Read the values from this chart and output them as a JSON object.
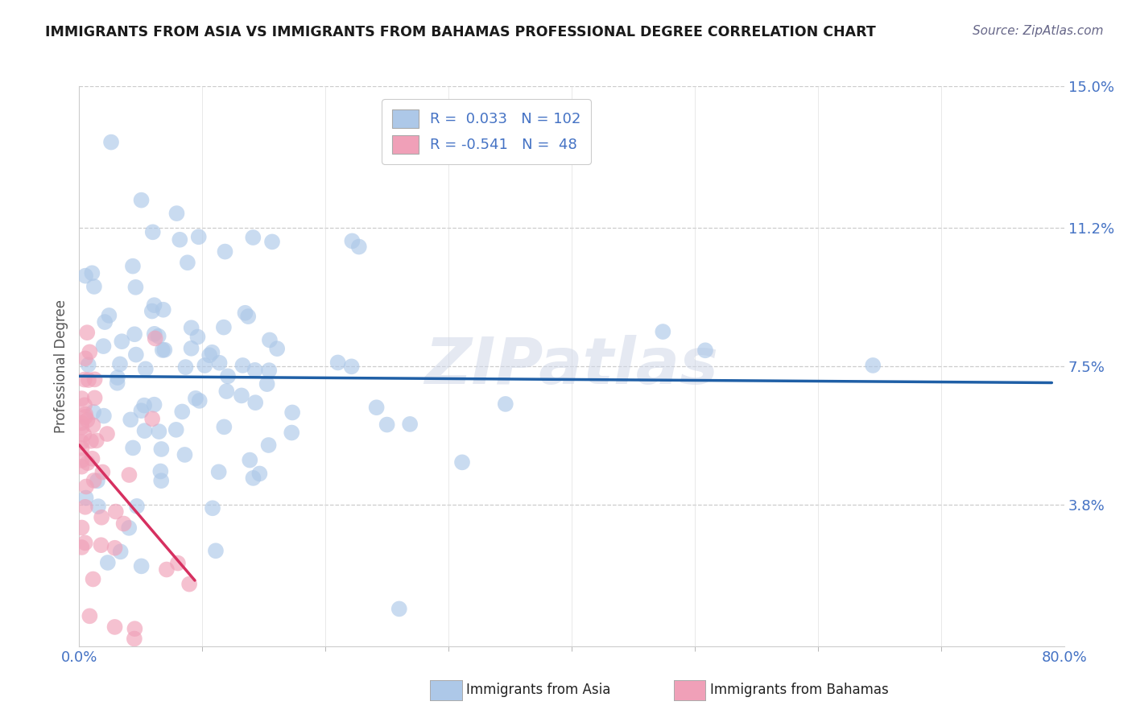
{
  "title": "IMMIGRANTS FROM ASIA VS IMMIGRANTS FROM BAHAMAS PROFESSIONAL DEGREE CORRELATION CHART",
  "source": "Source: ZipAtlas.com",
  "ylabel": "Professional Degree",
  "xlim": [
    0.0,
    0.8
  ],
  "ylim": [
    0.0,
    0.15
  ],
  "ytick_vals": [
    0.038,
    0.075,
    0.112,
    0.15
  ],
  "ytick_labels": [
    "3.8%",
    "7.5%",
    "11.2%",
    "15.0%"
  ],
  "xtick_vals": [
    0.0,
    0.8
  ],
  "xtick_labels": [
    "0.0%",
    "80.0%"
  ],
  "blue_R": 0.033,
  "blue_N": 102,
  "pink_R": -0.541,
  "pink_N": 48,
  "blue_color": "#adc8e8",
  "pink_color": "#f0a0b8",
  "blue_line_color": "#1f5fa6",
  "pink_line_color": "#d63060",
  "legend_blue_label": "Immigrants from Asia",
  "legend_pink_label": "Immigrants from Bahamas",
  "watermark": "ZIPatlas",
  "background_color": "#ffffff",
  "grid_color": "#cccccc",
  "title_color": "#1a1a1a",
  "ylabel_color": "#555555",
  "tick_color": "#4472c4",
  "source_color": "#666688"
}
